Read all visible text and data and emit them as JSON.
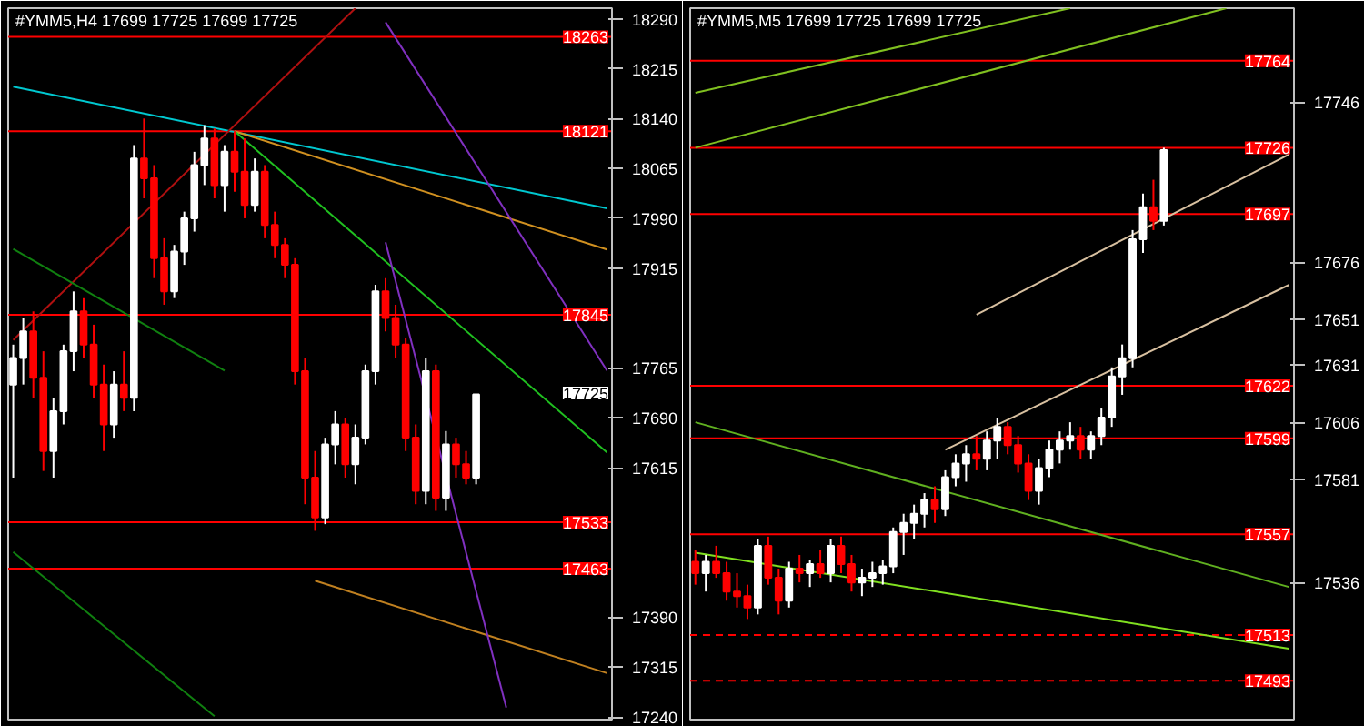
{
  "chart_data": [
    {
      "type": "candlestick",
      "title": "#YMM5,H4  17699 17725 17699 17725",
      "categories": [
        null,
        null,
        null,
        null,
        null,
        null,
        null,
        null,
        null,
        null,
        null,
        null,
        null,
        null,
        null,
        null,
        null,
        null,
        null,
        null,
        null,
        null,
        null,
        null,
        null,
        null,
        null,
        null,
        null,
        null,
        null,
        null,
        null,
        null,
        null,
        null,
        null,
        null,
        null,
        null,
        null,
        null,
        null,
        null,
        null,
        null,
        null,
        null,
        null,
        null,
        null,
        null,
        null,
        null,
        null,
        null,
        null,
        null,
        null,
        null
      ],
      "ohlc": [
        [
          17740,
          17800,
          17600,
          17780
        ],
        [
          17780,
          17840,
          17740,
          17820
        ],
        [
          17820,
          17850,
          17720,
          17750
        ],
        [
          17750,
          17790,
          17610,
          17640
        ],
        [
          17640,
          17720,
          17600,
          17700
        ],
        [
          17700,
          17800,
          17680,
          17790
        ],
        [
          17790,
          17880,
          17760,
          17850
        ],
        [
          17850,
          17870,
          17780,
          17800
        ],
        [
          17800,
          17830,
          17720,
          17740
        ],
        [
          17740,
          17770,
          17640,
          17680
        ],
        [
          17680,
          17760,
          17660,
          17740
        ],
        [
          17740,
          17790,
          17700,
          17720
        ],
        [
          17720,
          18100,
          17700,
          18080
        ],
        [
          18080,
          18140,
          18020,
          18050
        ],
        [
          18050,
          18070,
          17900,
          17930
        ],
        [
          17930,
          17960,
          17860,
          17880
        ],
        [
          17880,
          17950,
          17870,
          17940
        ],
        [
          17940,
          18000,
          17920,
          17990
        ],
        [
          17990,
          18090,
          17970,
          18070
        ],
        [
          18070,
          18130,
          18040,
          18110
        ],
        [
          18110,
          18125,
          18020,
          18040
        ],
        [
          18040,
          18100,
          18000,
          18090
        ],
        [
          18090,
          18121,
          18030,
          18060
        ],
        [
          18060,
          18110,
          17990,
          18010
        ],
        [
          18010,
          18080,
          18000,
          18060
        ],
        [
          18060,
          18070,
          17960,
          17980
        ],
        [
          17980,
          18000,
          17930,
          17950
        ],
        [
          17950,
          17960,
          17900,
          17920
        ],
        [
          17920,
          17930,
          17740,
          17760
        ],
        [
          17760,
          17780,
          17560,
          17600
        ],
        [
          17600,
          17640,
          17520,
          17540
        ],
        [
          17540,
          17660,
          17530,
          17650
        ],
        [
          17650,
          17700,
          17620,
          17680
        ],
        [
          17680,
          17690,
          17600,
          17620
        ],
        [
          17620,
          17680,
          17590,
          17660
        ],
        [
          17660,
          17770,
          17650,
          17760
        ],
        [
          17760,
          17890,
          17740,
          17880
        ],
        [
          17880,
          17900,
          17820,
          17840
        ],
        [
          17840,
          17860,
          17780,
          17800
        ],
        [
          17800,
          17810,
          17640,
          17660
        ],
        [
          17660,
          17680,
          17560,
          17580
        ],
        [
          17580,
          17780,
          17560,
          17760
        ],
        [
          17760,
          17770,
          17550,
          17570
        ],
        [
          17570,
          17670,
          17550,
          17650
        ],
        [
          17650,
          17660,
          17600,
          17620
        ],
        [
          17620,
          17640,
          17590,
          17600
        ],
        [
          17600,
          17725,
          17590,
          17725
        ],
        null,
        null,
        null,
        null,
        null,
        null,
        null,
        null,
        null,
        null,
        null,
        null,
        null
      ],
      "series": [
        {
          "type": "line",
          "color": "#00c8d0",
          "values": [
            18188,
            null,
            null,
            null,
            null,
            null,
            null,
            null,
            null,
            null,
            null,
            null,
            null,
            null,
            null,
            null,
            null,
            null,
            null,
            null,
            null,
            null,
            null,
            null,
            null,
            null,
            null,
            null,
            null,
            null,
            null,
            null,
            null,
            null,
            null,
            null,
            null,
            null,
            null,
            null,
            null,
            null,
            null,
            null,
            null,
            null,
            null,
            null,
            null,
            null,
            null,
            null,
            null,
            null,
            null,
            null,
            null,
            null,
            null,
            18005
          ]
        },
        {
          "type": "line",
          "color": "#b01010",
          "values": [
            17807,
            null,
            null,
            null,
            null,
            null,
            null,
            null,
            null,
            null,
            null,
            null,
            null,
            null,
            null,
            null,
            null,
            null,
            null,
            null,
            null,
            null,
            null,
            null,
            null,
            null,
            null,
            null,
            null,
            null,
            null,
            null,
            null,
            null,
            18306,
            null,
            null,
            null,
            null,
            null,
            null,
            null,
            null,
            null,
            null,
            null,
            null,
            null,
            null,
            null,
            null,
            null,
            null,
            null,
            null,
            null,
            null,
            null,
            null,
            null
          ]
        },
        {
          "type": "line",
          "color": "#d09020",
          "values": [
            null,
            null,
            null,
            null,
            null,
            null,
            null,
            null,
            null,
            null,
            null,
            null,
            null,
            null,
            null,
            null,
            null,
            null,
            null,
            null,
            null,
            null,
            18121,
            null,
            null,
            null,
            null,
            null,
            null,
            null,
            null,
            null,
            null,
            null,
            null,
            null,
            null,
            null,
            null,
            null,
            null,
            null,
            null,
            null,
            null,
            null,
            null,
            null,
            null,
            null,
            null,
            null,
            null,
            null,
            null,
            null,
            null,
            null,
            null,
            17943
          ]
        },
        {
          "type": "line",
          "color": "#20c020",
          "values": [
            null,
            null,
            null,
            null,
            null,
            null,
            null,
            null,
            null,
            null,
            null,
            null,
            null,
            null,
            null,
            null,
            null,
            null,
            null,
            null,
            null,
            null,
            18121,
            null,
            null,
            null,
            null,
            null,
            null,
            null,
            null,
            null,
            null,
            null,
            null,
            null,
            null,
            null,
            null,
            null,
            null,
            null,
            null,
            null,
            null,
            null,
            null,
            null,
            null,
            null,
            null,
            null,
            null,
            null,
            null,
            null,
            null,
            null,
            null,
            17638
          ]
        },
        {
          "type": "line",
          "color": "#108010",
          "values": [
            17944,
            null,
            null,
            null,
            null,
            null,
            null,
            null,
            null,
            null,
            null,
            null,
            null,
            null,
            null,
            null,
            null,
            null,
            null,
            null,
            null,
            17761,
            null,
            null,
            null,
            null,
            null,
            null,
            null,
            null,
            null,
            null,
            null,
            null,
            null,
            null,
            null,
            null,
            null,
            null,
            null,
            null,
            null,
            null,
            null,
            null,
            null,
            null,
            null,
            null,
            null,
            null,
            null,
            null,
            null,
            null,
            null,
            null,
            null,
            null
          ]
        },
        {
          "type": "line",
          "color": "#108010",
          "values": [
            17488,
            null,
            null,
            null,
            null,
            null,
            null,
            null,
            null,
            null,
            null,
            null,
            null,
            null,
            null,
            null,
            null,
            null,
            null,
            null,
            17241,
            null,
            null,
            null,
            null,
            null,
            null,
            null,
            null,
            null,
            null,
            null,
            null,
            null,
            null,
            null,
            null,
            null,
            null,
            null,
            null,
            null,
            null,
            null,
            null,
            null,
            null,
            null,
            null,
            null,
            null,
            null,
            null,
            null,
            null,
            null,
            null,
            null,
            null,
            null
          ]
        },
        {
          "type": "line",
          "color": "#c08020",
          "values": [
            null,
            null,
            null,
            null,
            null,
            null,
            null,
            null,
            null,
            null,
            null,
            null,
            null,
            null,
            null,
            null,
            null,
            null,
            null,
            null,
            null,
            null,
            null,
            null,
            null,
            null,
            null,
            null,
            null,
            null,
            17445,
            null,
            null,
            null,
            null,
            null,
            null,
            null,
            null,
            null,
            null,
            null,
            null,
            null,
            null,
            null,
            null,
            null,
            null,
            null,
            null,
            null,
            null,
            null,
            null,
            null,
            null,
            null,
            null,
            17306
          ]
        },
        {
          "type": "line",
          "color": "#8030c0",
          "values": [
            null,
            null,
            null,
            null,
            null,
            null,
            null,
            null,
            null,
            null,
            null,
            null,
            null,
            null,
            null,
            null,
            null,
            null,
            null,
            null,
            null,
            null,
            null,
            null,
            null,
            null,
            null,
            null,
            null,
            null,
            null,
            null,
            null,
            null,
            null,
            null,
            null,
            18285,
            null,
            null,
            null,
            null,
            null,
            null,
            null,
            null,
            null,
            null,
            null,
            null,
            null,
            null,
            null,
            null,
            null,
            null,
            null,
            null,
            null,
            17761
          ]
        },
        {
          "type": "line",
          "color": "#8030c0",
          "values": [
            null,
            null,
            null,
            null,
            null,
            null,
            null,
            null,
            null,
            null,
            null,
            null,
            null,
            null,
            null,
            null,
            null,
            null,
            null,
            null,
            null,
            null,
            null,
            null,
            null,
            null,
            null,
            null,
            null,
            null,
            null,
            null,
            null,
            null,
            null,
            null,
            null,
            17954,
            null,
            null,
            null,
            null,
            null,
            null,
            null,
            null,
            null,
            null,
            null,
            17254,
            null,
            null,
            null,
            null,
            null,
            null,
            null,
            null,
            null,
            null
          ]
        }
      ],
      "ref_lines": [
        {
          "axis": "y",
          "value": 18263,
          "label": "18263",
          "color": "#ff0000"
        },
        {
          "axis": "y",
          "value": 18121,
          "label": "18121",
          "color": "#ff0000"
        },
        {
          "axis": "y",
          "value": 17845,
          "label": "17845",
          "color": "#ff0000"
        },
        {
          "axis": "y",
          "value": 17533,
          "label": "17533",
          "color": "#ff0000"
        },
        {
          "axis": "y",
          "value": 17463,
          "label": "17463",
          "color": "#ff0000"
        }
      ],
      "annotations": [
        "17725"
      ],
      "ylim": [
        17236,
        18306
      ],
      "yticks": [
        18290,
        18215,
        18140,
        18065,
        17990,
        17915,
        17765,
        17690,
        17615,
        17390,
        17315,
        17240
      ],
      "tick_labels": "y"
    },
    {
      "type": "candlestick",
      "title": "#YMM5,M5  17699 17725 17699 17725",
      "categories": [
        null,
        null,
        null,
        null,
        null,
        null,
        null,
        null,
        null,
        null,
        null,
        null,
        null,
        null,
        null,
        null,
        null,
        null,
        null,
        null,
        null,
        null,
        null,
        null,
        null,
        null,
        null,
        null,
        null,
        null,
        null,
        null,
        null,
        null,
        null,
        null,
        null,
        null,
        null,
        null,
        null,
        null,
        null,
        null,
        null,
        null,
        null,
        null,
        null,
        null,
        null,
        null,
        null,
        null,
        null,
        null,
        null,
        null
      ],
      "ohlc": [
        [
          17545,
          17550,
          17535,
          17540
        ],
        [
          17540,
          17548,
          17532,
          17545
        ],
        [
          17545,
          17552,
          17538,
          17540
        ],
        [
          17540,
          17545,
          17528,
          17532
        ],
        [
          17532,
          17540,
          17525,
          17530
        ],
        [
          17530,
          17535,
          17520,
          17525
        ],
        [
          17525,
          17555,
          17522,
          17552
        ],
        [
          17552,
          17556,
          17535,
          17538
        ],
        [
          17538,
          17542,
          17522,
          17528
        ],
        [
          17528,
          17545,
          17525,
          17542
        ],
        [
          17542,
          17548,
          17536,
          17540
        ],
        [
          17540,
          17546,
          17534,
          17544
        ],
        [
          17544,
          17550,
          17538,
          17540
        ],
        [
          17540,
          17555,
          17536,
          17552
        ],
        [
          17552,
          17556,
          17540,
          17544
        ],
        [
          17544,
          17548,
          17532,
          17536
        ],
        [
          17536,
          17542,
          17530,
          17538
        ],
        [
          17538,
          17545,
          17534,
          17540
        ],
        [
          17540,
          17546,
          17535,
          17543
        ],
        [
          17543,
          17560,
          17540,
          17558
        ],
        [
          17558,
          17566,
          17548,
          17562
        ],
        [
          17562,
          17570,
          17555,
          17566
        ],
        [
          17566,
          17575,
          17560,
          17572
        ],
        [
          17572,
          17578,
          17562,
          17568
        ],
        [
          17568,
          17585,
          17565,
          17582
        ],
        [
          17582,
          17592,
          17578,
          17588
        ],
        [
          17588,
          17596,
          17580,
          17592
        ],
        [
          17592,
          17600,
          17585,
          17590
        ],
        [
          17590,
          17602,
          17585,
          17598
        ],
        [
          17598,
          17608,
          17590,
          17604
        ],
        [
          17604,
          17606,
          17592,
          17596
        ],
        [
          17596,
          17600,
          17584,
          17588
        ],
        [
          17588,
          17592,
          17572,
          17576
        ],
        [
          17576,
          17590,
          17570,
          17586
        ],
        [
          17586,
          17598,
          17582,
          17594
        ],
        [
          17594,
          17602,
          17588,
          17598
        ],
        [
          17598,
          17606,
          17594,
          17600
        ],
        [
          17600,
          17604,
          17590,
          17594
        ],
        [
          17594,
          17602,
          17590,
          17600
        ],
        [
          17600,
          17612,
          17596,
          17608
        ],
        [
          17608,
          17630,
          17604,
          17626
        ],
        [
          17626,
          17640,
          17618,
          17634
        ],
        [
          17634,
          17690,
          17630,
          17686
        ],
        [
          17686,
          17706,
          17680,
          17700
        ],
        [
          17700,
          17712,
          17690,
          17694
        ],
        [
          17694,
          17726,
          17692,
          17725
        ],
        null,
        null,
        null,
        null,
        null,
        null,
        null,
        null,
        null,
        null,
        null,
        null
      ],
      "series": [
        {
          "type": "line",
          "color": "#80c020",
          "values": [
            17750,
            null,
            null,
            null,
            null,
            null,
            null,
            null,
            null,
            null,
            null,
            null,
            null,
            null,
            null,
            null,
            null,
            null,
            null,
            null,
            null,
            null,
            null,
            null,
            null,
            null,
            null,
            null,
            null,
            null,
            null,
            null,
            null,
            null,
            null,
            null,
            17787,
            null,
            null,
            null,
            null,
            null,
            null,
            null,
            null,
            null,
            null,
            null,
            null,
            null,
            null,
            null,
            null,
            null,
            null,
            null,
            null,
            null
          ]
        },
        {
          "type": "line",
          "color": "#80c020",
          "values": [
            17726,
            null,
            null,
            null,
            null,
            null,
            null,
            null,
            null,
            null,
            null,
            null,
            null,
            null,
            null,
            null,
            null,
            null,
            null,
            null,
            null,
            null,
            null,
            null,
            null,
            null,
            null,
            null,
            null,
            null,
            null,
            null,
            null,
            null,
            null,
            null,
            null,
            null,
            null,
            null,
            null,
            null,
            null,
            null,
            null,
            null,
            null,
            null,
            null,
            null,
            null,
            17787,
            null,
            null,
            null,
            null,
            null,
            null
          ]
        },
        {
          "type": "line",
          "color": "#d8c0a0",
          "values": [
            null,
            null,
            null,
            null,
            null,
            null,
            null,
            null,
            null,
            null,
            null,
            null,
            null,
            null,
            null,
            null,
            null,
            null,
            null,
            null,
            null,
            null,
            null,
            null,
            null,
            null,
            null,
            17653,
            null,
            null,
            null,
            null,
            null,
            null,
            null,
            null,
            null,
            null,
            null,
            null,
            null,
            null,
            null,
            null,
            null,
            null,
            null,
            null,
            null,
            null,
            null,
            null,
            null,
            null,
            null,
            null,
            null,
            17723
          ]
        },
        {
          "type": "line",
          "color": "#d8c0a0",
          "values": [
            null,
            null,
            null,
            null,
            null,
            null,
            null,
            null,
            null,
            null,
            null,
            null,
            null,
            null,
            null,
            null,
            null,
            null,
            null,
            null,
            null,
            null,
            null,
            null,
            17594,
            null,
            null,
            null,
            null,
            null,
            null,
            null,
            null,
            null,
            null,
            null,
            null,
            null,
            null,
            null,
            null,
            null,
            null,
            null,
            null,
            null,
            null,
            null,
            null,
            null,
            null,
            null,
            null,
            null,
            null,
            null,
            null,
            17666
          ]
        },
        {
          "type": "line",
          "color": "#80e020",
          "values": [
            17549,
            null,
            null,
            null,
            null,
            null,
            null,
            null,
            null,
            null,
            null,
            null,
            null,
            null,
            null,
            null,
            null,
            null,
            null,
            null,
            null,
            null,
            null,
            null,
            null,
            null,
            null,
            null,
            null,
            null,
            null,
            null,
            null,
            null,
            null,
            null,
            null,
            null,
            null,
            null,
            null,
            null,
            null,
            null,
            null,
            null,
            null,
            null,
            null,
            null,
            null,
            null,
            null,
            null,
            null,
            null,
            null,
            17507
          ]
        },
        {
          "type": "line",
          "color": "#60b020",
          "values": [
            17606,
            null,
            null,
            null,
            null,
            null,
            null,
            null,
            null,
            null,
            null,
            null,
            null,
            null,
            null,
            null,
            null,
            null,
            null,
            null,
            null,
            null,
            null,
            null,
            null,
            null,
            null,
            null,
            null,
            null,
            null,
            null,
            null,
            null,
            null,
            null,
            null,
            null,
            null,
            null,
            null,
            null,
            null,
            null,
            null,
            null,
            null,
            null,
            null,
            null,
            null,
            null,
            null,
            null,
            null,
            null,
            null,
            17534
          ]
        }
      ],
      "ref_lines": [
        {
          "axis": "y",
          "value": 17764,
          "label": "17764",
          "color": "#ff0000"
        },
        {
          "axis": "y",
          "value": 17726,
          "label": "17726",
          "color": "#ff0000"
        },
        {
          "axis": "y",
          "value": 17697,
          "label": "17697",
          "color": "#ff0000"
        },
        {
          "axis": "y",
          "value": 17622,
          "label": "17622",
          "color": "#ff0000"
        },
        {
          "axis": "y",
          "value": 17599,
          "label": "17599",
          "color": "#ff0000"
        },
        {
          "axis": "y",
          "value": 17557,
          "label": "17557",
          "color": "#ff0000"
        },
        {
          "axis": "y",
          "value": 17513,
          "label": "17513",
          "color": "#ff0000",
          "line_style": "dashed"
        },
        {
          "axis": "y",
          "value": 17493,
          "label": "17493",
          "color": "#ff0000",
          "line_style": "dashed"
        }
      ],
      "ylim": [
        17476,
        17787
      ],
      "yticks": [
        17746,
        17676,
        17651,
        17631,
        17606,
        17581,
        17536
      ],
      "tick_labels": "y"
    }
  ]
}
